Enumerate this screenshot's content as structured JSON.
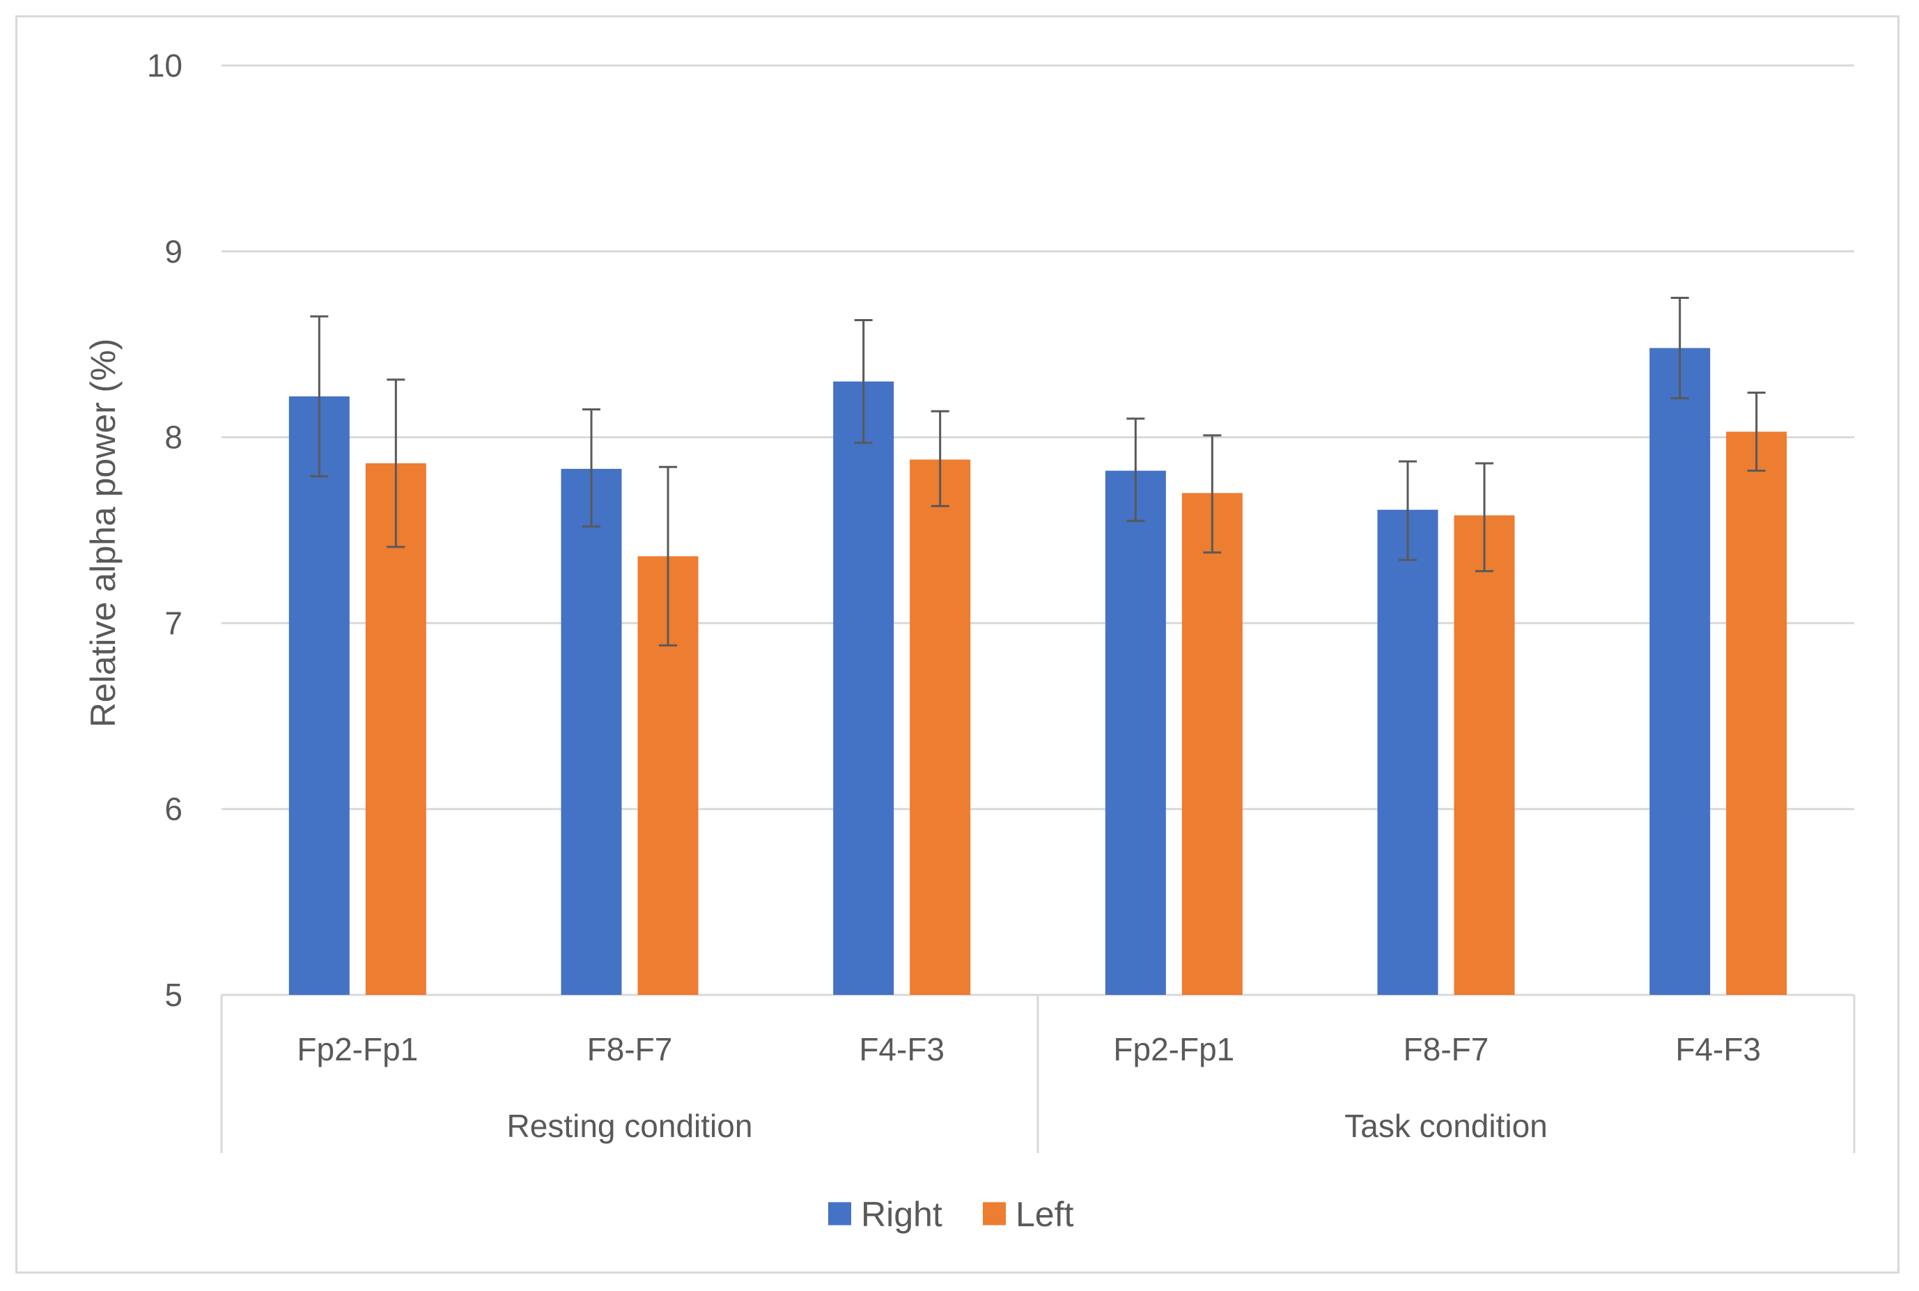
{
  "chart_data": {
    "type": "bar",
    "title": "",
    "xlabel": "",
    "ylabel": "Relative alpha power (%)",
    "ylim": [
      5,
      10
    ],
    "yticks": [
      5,
      6,
      7,
      8,
      9,
      10
    ],
    "grid": true,
    "legend_position": "bottom",
    "groups": [
      {
        "label": "Resting condition",
        "categories": [
          "Fp2-Fp1",
          "F8-F7",
          "F4-F3"
        ]
      },
      {
        "label": "Task condition",
        "categories": [
          "Fp2-Fp1",
          "F8-F7",
          "F4-F3"
        ]
      }
    ],
    "categories": [
      "Fp2-Fp1",
      "F8-F7",
      "F4-F3",
      "Fp2-Fp1",
      "F8-F7",
      "F4-F3"
    ],
    "series": [
      {
        "name": "Right",
        "color": "#4472c4",
        "values": [
          8.22,
          7.83,
          8.3,
          7.82,
          7.61,
          8.48
        ],
        "err_low": [
          7.79,
          7.52,
          7.97,
          7.55,
          7.34,
          8.21
        ],
        "err_high": [
          8.65,
          8.15,
          8.63,
          8.1,
          7.87,
          8.75
        ]
      },
      {
        "name": "Left",
        "color": "#ed7d31",
        "values": [
          7.86,
          7.36,
          7.88,
          7.7,
          7.58,
          8.03
        ],
        "err_low": [
          7.41,
          6.88,
          7.63,
          7.38,
          7.28,
          7.82
        ],
        "err_high": [
          8.31,
          7.84,
          8.14,
          8.01,
          7.86,
          8.24
        ]
      }
    ]
  }
}
